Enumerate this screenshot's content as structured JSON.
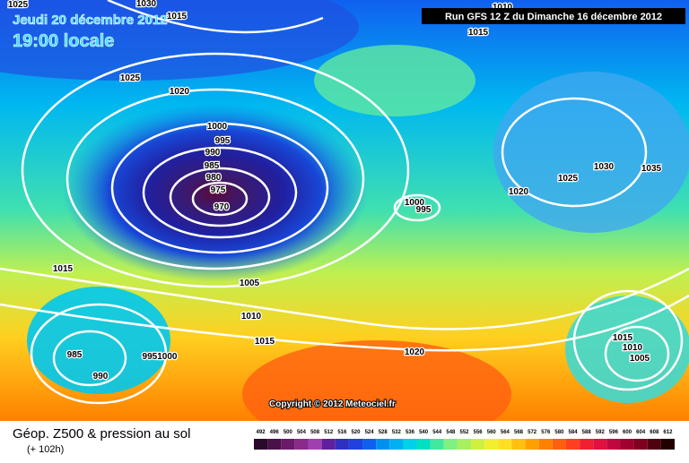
{
  "header": {
    "date": "Jeudi 20 décembre 2012",
    "time": "19:00 locale",
    "run": "Run GFS 12 Z du Dimanche 16 décembre 2012"
  },
  "copyright": "Copyright © 2012 Meteociel.fr",
  "footer": {
    "title": "Géop. Z500 & pression au sol",
    "subtitle": "(+ 102h)"
  },
  "isobar_labels": [
    "1025",
    "1030",
    "1015",
    "1010",
    "1015",
    "1025",
    "1020",
    "1000",
    "995",
    "990",
    "985",
    "980",
    "975",
    "970",
    "1000",
    "995",
    "1020",
    "1030",
    "1035",
    "1025",
    "1015",
    "1005",
    "1010",
    "1015",
    "1020",
    "985",
    "990",
    "9951000",
    "1015",
    "1010",
    "1005"
  ],
  "legend": {
    "values": [
      492,
      496,
      500,
      504,
      508,
      512,
      516,
      520,
      524,
      528,
      532,
      536,
      540,
      544,
      548,
      552,
      556,
      560,
      564,
      568,
      572,
      576,
      580,
      584,
      588,
      592,
      596,
      600,
      604,
      608,
      612
    ],
    "colors": [
      "#2a0a2a",
      "#4a1048",
      "#6a1a6a",
      "#8a2a8a",
      "#a040b0",
      "#6020a0",
      "#3030c0",
      "#2040e0",
      "#1060f0",
      "#0090f0",
      "#00b0f0",
      "#00d0e8",
      "#00e0c0",
      "#40e8a0",
      "#80f080",
      "#a8f060",
      "#d0f040",
      "#f0f030",
      "#ffe020",
      "#ffc010",
      "#ffa000",
      "#ff8000",
      "#ff6010",
      "#ff4020",
      "#f02030",
      "#e01040",
      "#c00840",
      "#a00030",
      "#800020",
      "#500010",
      "#200000"
    ]
  }
}
